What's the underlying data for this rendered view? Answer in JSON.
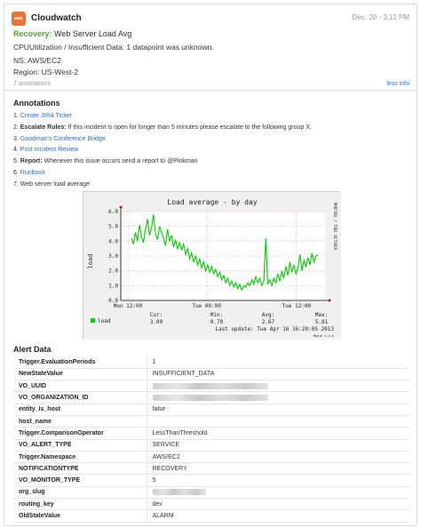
{
  "header": {
    "app_name": "Cloudwatch",
    "logo_text": "aws",
    "timestamp": "Dec. 20 - 3:12 PM",
    "status": "Recovery:",
    "alert_name": "Web Server Load Avg",
    "summary": "CPUUtilization / Insufficient Data: 1 datapoint was unknown.",
    "ns": "NS: AWS/EC2",
    "region": "Region: US-West-2",
    "annotation_count": "7 annotations",
    "less_info": "less info"
  },
  "annotations": {
    "title": "Annotations",
    "items": [
      {
        "num": "1.",
        "link": "Create JIRA Ticket"
      },
      {
        "num": "2.",
        "bold": "Escalate Rules:",
        "text": " If this incident is open for longer than 5 minutes please escalate to the following group X."
      },
      {
        "num": "3.",
        "link": "Goodman's Conference Bridge"
      },
      {
        "num": "4.",
        "link": "Post Incident Review"
      },
      {
        "num": "5.",
        "bold": "Report:",
        "text": " Whenever this issue occurs send a report to @Pinkman"
      },
      {
        "num": "6.",
        "link": "Runbook"
      },
      {
        "num": "7.",
        "text": "Web server load average"
      }
    ]
  },
  "graph": {
    "title": "Load average - by day",
    "side_text": "RRDTOOL / TOBI OETIKER",
    "ylabel": "load",
    "y_ticks": [
      "6.0",
      "5.0",
      "4.0",
      "3.0",
      "2.0",
      "1.0",
      "0.0"
    ],
    "x_ticks": [
      "Mon 12:00",
      "Tue 00:00",
      "Tue 12:00"
    ],
    "legend": {
      "series": "load",
      "cur_label": "Cur:",
      "cur": "3.09",
      "min_label": "Min:",
      "min": "0.70",
      "avg_label": "Avg:",
      "avg": "2.67",
      "max_label": "Max:",
      "max": "5.81",
      "last_update": "Last update: Tue Apr 16 16:20:05 2013"
    },
    "footer": "Munin 1.4.5",
    "colors": {
      "line": "#00cc00",
      "axis": "#000000",
      "grid": "#e08080",
      "bg": "#ffffff"
    }
  },
  "chart_data": {
    "type": "line",
    "title": "Load average - by day",
    "ylabel": "load",
    "ylim": [
      0,
      6
    ],
    "x_ticks": [
      "Mon 12:00",
      "Tue 00:00",
      "Tue 12:00"
    ],
    "series": [
      {
        "name": "load",
        "values": [
          4.2,
          3.8,
          4.6,
          4.0,
          5.1,
          4.3,
          3.9,
          4.8,
          5.5,
          4.4,
          4.9,
          5.8,
          4.5,
          4.1,
          5.0,
          4.6,
          4.2,
          3.7,
          4.8,
          4.0,
          4.4,
          3.6,
          4.1,
          3.5,
          3.9,
          3.4,
          3.8,
          3.1,
          3.5,
          2.8,
          3.2,
          2.6,
          3.0,
          2.4,
          2.8,
          2.2,
          2.6,
          2.0,
          2.4,
          1.9,
          2.3,
          1.8,
          2.1,
          1.6,
          1.9,
          1.4,
          1.7,
          1.2,
          1.5,
          1.0,
          1.3,
          0.9,
          1.2,
          0.8,
          1.1,
          0.7,
          1.0,
          0.9,
          1.2,
          1.0,
          1.4,
          1.1,
          1.6,
          1.2,
          1.5,
          1.0,
          1.3,
          4.2,
          1.1,
          1.4,
          1.0,
          1.5,
          1.2,
          1.8,
          1.3,
          2.0,
          1.5,
          2.3,
          1.7,
          2.6,
          1.9,
          2.4,
          1.8,
          2.2,
          3.1,
          2.0,
          2.7,
          2.3,
          2.9,
          2.4,
          3.2,
          2.6,
          3.0,
          3.09
        ]
      }
    ]
  },
  "alert_data": {
    "title": "Alert Data",
    "rows": [
      {
        "key": "Trigger.EvaluationPeriods",
        "value": "1"
      },
      {
        "key": "NewStateValue",
        "value": "INSUFFICIENT_DATA"
      },
      {
        "key": "VO_UUID",
        "value": "",
        "redacted": true
      },
      {
        "key": "VO_ORGANIZATION_ID",
        "value": "",
        "redacted": true
      },
      {
        "key": "entity_is_host",
        "value": "false"
      },
      {
        "key": "host_name",
        "value": ""
      },
      {
        "key": "Trigger.ComparisonOperator",
        "value": "LessThanThreshold"
      },
      {
        "key": "VO_ALERT_TYPE",
        "value": "SERVICE"
      },
      {
        "key": "Trigger.Namespace",
        "value": "AWS/EC2"
      },
      {
        "key": "NOTIFICATIONTYPE",
        "value": "RECOVERY"
      },
      {
        "key": "VO_MONITOR_TYPE",
        "value": "5"
      },
      {
        "key": "org_slug",
        "value": "",
        "redacted": true
      },
      {
        "key": "routing_key",
        "value": "dev"
      },
      {
        "key": "OldStateValue",
        "value": "ALARM"
      }
    ]
  }
}
